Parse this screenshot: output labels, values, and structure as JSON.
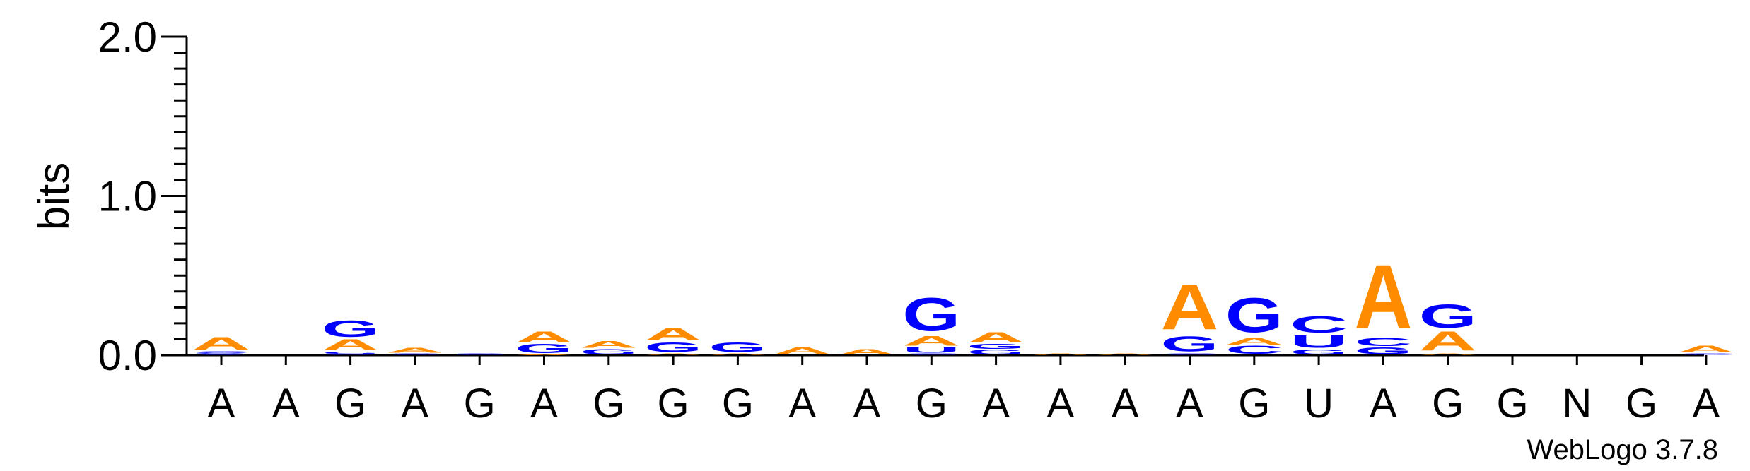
{
  "chart_data": {
    "type": "sequence-logo",
    "ylabel": "bits",
    "ylim": [
      0,
      2.0
    ],
    "yticks": [
      "0.0",
      "1.0",
      "2.0"
    ],
    "footer": "WebLogo 3.7.8",
    "colors": {
      "A": "#ff8c00",
      "G": "#0000ff",
      "C": "#0000ff",
      "U": "#0000ff"
    },
    "x_labels": [
      "A",
      "A",
      "G",
      "A",
      "G",
      "A",
      "G",
      "G",
      "G",
      "A",
      "A",
      "G",
      "A",
      "A",
      "A",
      "A",
      "G",
      "U",
      "A",
      "G",
      "G",
      "N",
      "G",
      "A"
    ],
    "stacks": [
      [
        [
          "G",
          0.012
        ],
        [
          "C",
          0.012
        ],
        [
          "A",
          0.09
        ]
      ],
      [],
      [
        [
          "U",
          0.01
        ],
        [
          "C",
          0.01
        ],
        [
          "A",
          0.08
        ],
        [
          "G",
          0.12
        ]
      ],
      [
        [
          "G",
          0.01
        ],
        [
          "A",
          0.035
        ]
      ],
      [
        [
          "G",
          0.01
        ]
      ],
      [
        [
          "A",
          0.005
        ],
        [
          "G",
          0.065
        ],
        [
          "A",
          0.08
        ]
      ],
      [
        [
          "G",
          0.04
        ],
        [
          "A",
          0.05
        ]
      ],
      [
        [
          "A",
          0.01
        ],
        [
          "G",
          0.07
        ],
        [
          "A",
          0.09
        ]
      ],
      [
        [
          "A",
          0.01
        ],
        [
          "G",
          0.07
        ]
      ],
      [
        [
          "A",
          0.05
        ]
      ],
      [
        [
          "A",
          0.04
        ]
      ],
      [
        [
          "C",
          0.01
        ],
        [
          "U",
          0.04
        ],
        [
          "A",
          0.07
        ],
        [
          "G",
          0.24
        ]
      ],
      [
        [
          "G",
          0.035
        ],
        [
          "G",
          0.035
        ],
        [
          "A",
          0.075
        ]
      ],
      [
        [
          "A",
          0.01
        ]
      ],
      [
        [
          "A",
          0.01
        ]
      ],
      [
        [
          "C",
          0.01
        ],
        [
          "G",
          0.11
        ],
        [
          "A",
          0.33
        ]
      ],
      [
        [
          "C",
          0.06
        ],
        [
          "A",
          0.05
        ],
        [
          "G",
          0.25
        ]
      ],
      [
        [
          "G",
          0.035
        ],
        [
          "U",
          0.09
        ],
        [
          "C",
          0.12
        ]
      ],
      [
        [
          "G",
          0.05
        ],
        [
          "C",
          0.06
        ],
        [
          "A",
          0.46
        ]
      ],
      [
        [
          "A",
          0.01
        ],
        [
          "A",
          0.14
        ],
        [
          "G",
          0.17
        ]
      ],
      [],
      [],
      [],
      [
        [
          "C",
          0.01
        ],
        [
          "A",
          0.05
        ]
      ]
    ]
  }
}
